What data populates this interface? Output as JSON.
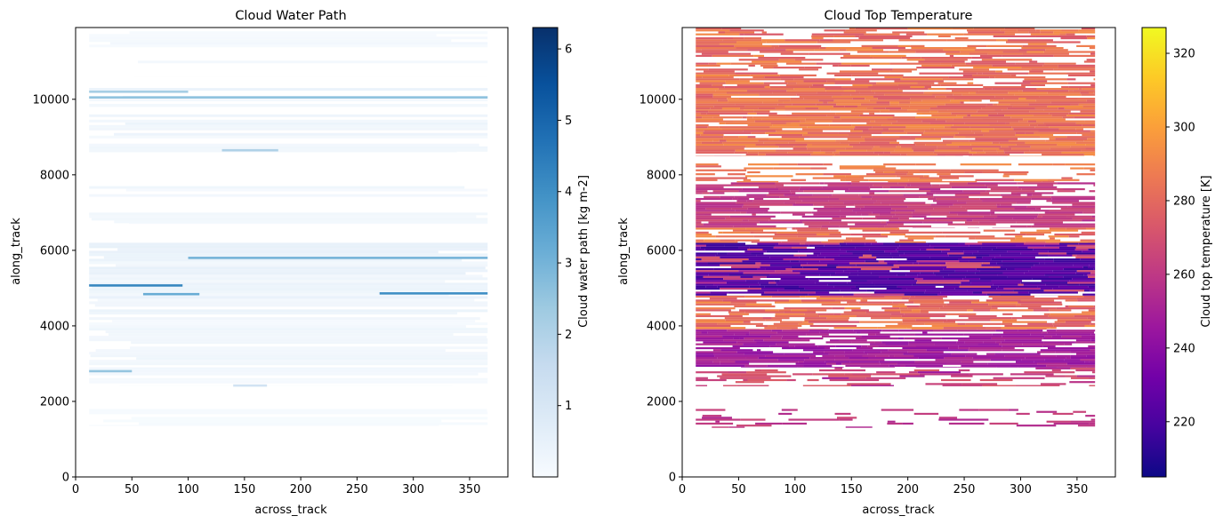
{
  "chart_data": [
    {
      "type": "heatmap",
      "title": "Cloud Water Path",
      "xlabel": "across_track",
      "ylabel": "along_track",
      "xlim": [
        0,
        384
      ],
      "ylim": [
        0,
        11900
      ],
      "xticks": [
        0,
        50,
        100,
        150,
        200,
        250,
        300,
        350
      ],
      "yticks": [
        0,
        2000,
        4000,
        6000,
        8000,
        10000
      ],
      "data_x_range": [
        12,
        366
      ],
      "colormap": {
        "name": "Blues",
        "stops": [
          "#f7fbff",
          "#deebf7",
          "#c6dbef",
          "#9ecae1",
          "#6baed6",
          "#4292c6",
          "#2171b5",
          "#08519c",
          "#08306b"
        ],
        "range": [
          0.0,
          6.3
        ],
        "ticks": [
          1,
          2,
          3,
          4,
          5,
          6
        ],
        "label": "Cloud water path [kg m-2]"
      },
      "bands": [
        {
          "y": [
            1350,
            1800
          ],
          "value": 0.08,
          "coverage": 0.35
        },
        {
          "y": [
            2400,
            2900
          ],
          "value": 0.15,
          "coverage": 0.55
        },
        {
          "y": [
            2900,
            4300
          ],
          "value": 0.25,
          "coverage": 0.9
        },
        {
          "y": [
            4300,
            5000
          ],
          "value": 0.35,
          "coverage": 0.9
        },
        {
          "y": [
            5000,
            6200
          ],
          "value": 0.45,
          "coverage": 0.95
        },
        {
          "y": [
            6700,
            7000
          ],
          "value": 0.2,
          "coverage": 0.6
        },
        {
          "y": [
            7300,
            7700
          ],
          "value": 0.3,
          "coverage": 0.8
        },
        {
          "y": [
            8600,
            9600
          ],
          "value": 0.3,
          "coverage": 0.85
        },
        {
          "y": [
            9800,
            10300
          ],
          "value": 0.35,
          "coverage": 0.85
        },
        {
          "y": [
            10600,
            11800
          ],
          "value": 0.15,
          "coverage": 0.5
        }
      ],
      "streaks": [
        {
          "x": [
            12,
            95
          ],
          "y": 5070,
          "value": 4.2
        },
        {
          "x": [
            60,
            110
          ],
          "y": 4840,
          "value": 3.2
        },
        {
          "x": [
            270,
            366
          ],
          "y": 4860,
          "value": 4.0
        },
        {
          "x": [
            100,
            366
          ],
          "y": 5800,
          "value": 3.0
        },
        {
          "x": [
            12,
            50
          ],
          "y": 2800,
          "value": 2.5
        },
        {
          "x": [
            12,
            366
          ],
          "y": 10050,
          "value": 2.6
        },
        {
          "x": [
            12,
            100
          ],
          "y": 10200,
          "value": 2.2
        },
        {
          "x": [
            130,
            180
          ],
          "y": 8650,
          "value": 2.0
        },
        {
          "x": [
            140,
            170
          ],
          "y": 2420,
          "value": 1.2
        }
      ]
    },
    {
      "type": "heatmap",
      "title": "Cloud Top Temperature",
      "xlabel": "across_track",
      "ylabel": "along_track",
      "xlim": [
        0,
        384
      ],
      "ylim": [
        0,
        11900
      ],
      "xticks": [
        0,
        50,
        100,
        150,
        200,
        250,
        300,
        350
      ],
      "yticks": [
        0,
        2000,
        4000,
        6000,
        8000,
        10000
      ],
      "data_x_range": [
        12,
        366
      ],
      "colormap": {
        "name": "plasma",
        "stops": [
          "#0d0887",
          "#46039f",
          "#7201a8",
          "#9c179e",
          "#bd3786",
          "#d8576b",
          "#ed7953",
          "#fb9f3a",
          "#fdca26",
          "#f0f921"
        ],
        "range": [
          205,
          327
        ],
        "ticks": [
          220,
          240,
          260,
          280,
          300,
          320
        ],
        "label": "Cloud top temperature [K]"
      },
      "bands": [
        {
          "y": [
            1300,
            1800
          ],
          "value": 260,
          "coverage": 0.25
        },
        {
          "y": [
            2400,
            2900
          ],
          "value": 268,
          "coverage": 0.45
        },
        {
          "y": [
            2900,
            3900
          ],
          "value": 248,
          "coverage": 0.85
        },
        {
          "y": [
            3900,
            4800
          ],
          "value": 278,
          "coverage": 0.75
        },
        {
          "y": [
            4800,
            6200
          ],
          "value": 222,
          "coverage": 0.95
        },
        {
          "y": [
            6200,
            6600
          ],
          "value": 280,
          "coverage": 0.6
        },
        {
          "y": [
            6600,
            7800
          ],
          "value": 262,
          "coverage": 0.8
        },
        {
          "y": [
            7800,
            8300
          ],
          "value": 284,
          "coverage": 0.45
        },
        {
          "y": [
            8500,
            9700
          ],
          "value": 281,
          "coverage": 0.9
        },
        {
          "y": [
            9700,
            10300
          ],
          "value": 281,
          "coverage": 0.92
        },
        {
          "y": [
            10300,
            11900
          ],
          "value": 280,
          "coverage": 0.65
        }
      ],
      "streaks": []
    }
  ]
}
